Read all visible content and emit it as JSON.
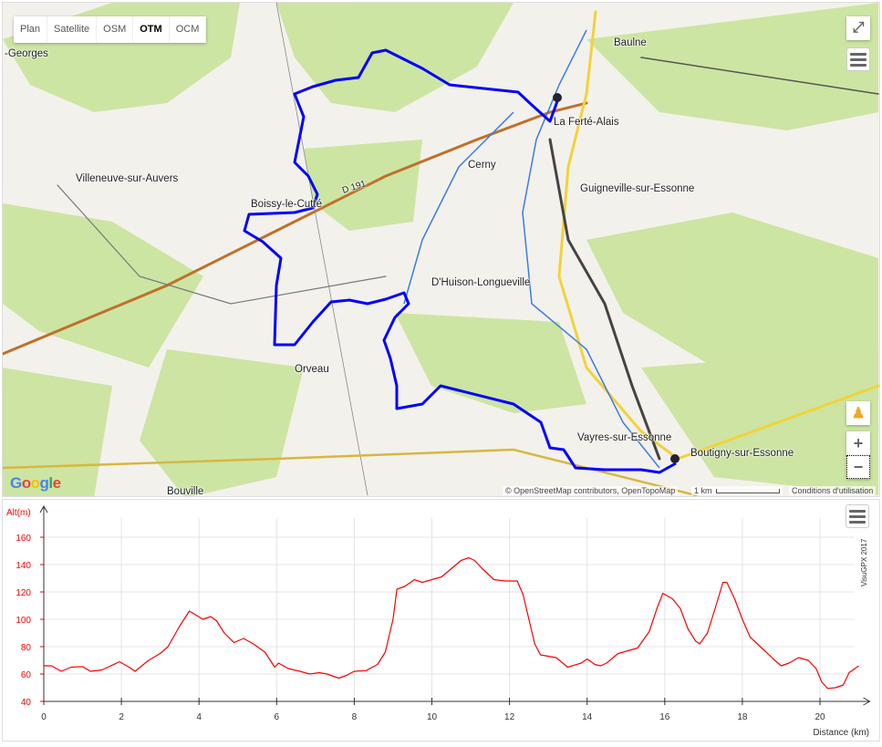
{
  "map": {
    "map_types": [
      {
        "label": "Plan",
        "active": false
      },
      {
        "label": "Satellite",
        "active": false
      },
      {
        "label": "OSM",
        "active": false
      },
      {
        "label": "OTM",
        "active": true
      },
      {
        "label": "OCM",
        "active": false
      }
    ],
    "places": [
      "-Georges",
      "Baulne",
      "La Ferté-Alais",
      "Villeneuve-sur-Auvers",
      "Boissy-le-Cutté",
      "Cerny",
      "Guigneville-sur-Essonne",
      "D'Huison-Longueville",
      "Orveau",
      "Vayres-sur-Essonne",
      "Boutigny-sur-Essonne",
      "Bouville"
    ],
    "road_label": "D 191",
    "logo": "Google",
    "attribution": "© OpenStreetMap contributors, OpenTopoMap",
    "scale_label": "1 km",
    "terms": "Conditions d'utilisation",
    "zoom_in": "+",
    "zoom_out": "−",
    "track_color": "#0000ff",
    "icons": [
      "fullscreen-icon",
      "menu-icon",
      "pegman-icon",
      "start-marker-icon",
      "end-marker-icon"
    ]
  },
  "chart_data": {
    "type": "line",
    "ylabel": "Alt(m)",
    "xlabel": "Distance (km)",
    "credit": "VisuGPX 2017",
    "xlim": [
      0,
      21
    ],
    "ylim": [
      40,
      170
    ],
    "xticks": [
      0,
      2,
      4,
      6,
      8,
      10,
      12,
      14,
      16,
      18,
      20
    ],
    "yticks": [
      40,
      60,
      80,
      100,
      120,
      140,
      160
    ],
    "grid": true,
    "line_color": "#ff0000",
    "x": [
      0,
      0.2,
      0.45,
      0.7,
      1,
      1.2,
      1.5,
      1.95,
      2.2,
      2.35,
      2.7,
      3.0,
      3.2,
      3.5,
      3.75,
      4.1,
      4.3,
      4.45,
      4.65,
      4.9,
      5.15,
      5.4,
      5.7,
      5.95,
      6.05,
      6.3,
      6.6,
      6.85,
      7.1,
      7.3,
      7.6,
      7.8,
      8.0,
      8.3,
      8.6,
      8.8,
      9.0,
      9.1,
      9.3,
      9.55,
      9.75,
      10.0,
      10.25,
      10.5,
      10.75,
      10.95,
      11.1,
      11.3,
      11.6,
      11.9,
      12.2,
      12.35,
      12.5,
      12.65,
      12.8,
      13.2,
      13.5,
      13.85,
      14.0,
      14.2,
      14.35,
      14.5,
      14.8,
      15.3,
      15.6,
      15.8,
      15.95,
      16.2,
      16.4,
      16.6,
      16.8,
      16.9,
      17.1,
      17.3,
      17.5,
      17.6,
      17.8,
      18.0,
      18.2,
      18.5,
      18.8,
      19.0,
      19.2,
      19.45,
      19.7,
      19.9,
      20.05,
      20.2,
      20.4,
      20.6,
      20.75,
      21.0
    ],
    "y": [
      66,
      66,
      62,
      65,
      65.5,
      62,
      63,
      69,
      65,
      62,
      70,
      75,
      80,
      95,
      106,
      100,
      102,
      99,
      90,
      83,
      86,
      82,
      76,
      65,
      68,
      64,
      62,
      60,
      61,
      60,
      57,
      59,
      62,
      62.5,
      67,
      76,
      100,
      122,
      124,
      129,
      127,
      129,
      131,
      137,
      143,
      145,
      143,
      137,
      129,
      128,
      128,
      118,
      100,
      82,
      74,
      72,
      65,
      68,
      71,
      67,
      66,
      68,
      75,
      79,
      91,
      108,
      119,
      115,
      108,
      93,
      84,
      82,
      90,
      108,
      127,
      127,
      115,
      100,
      87,
      79,
      71,
      66,
      68,
      72,
      70,
      64,
      54,
      49.5,
      50,
      52,
      61,
      66
    ]
  },
  "chart_menu_icon": "menu-icon"
}
